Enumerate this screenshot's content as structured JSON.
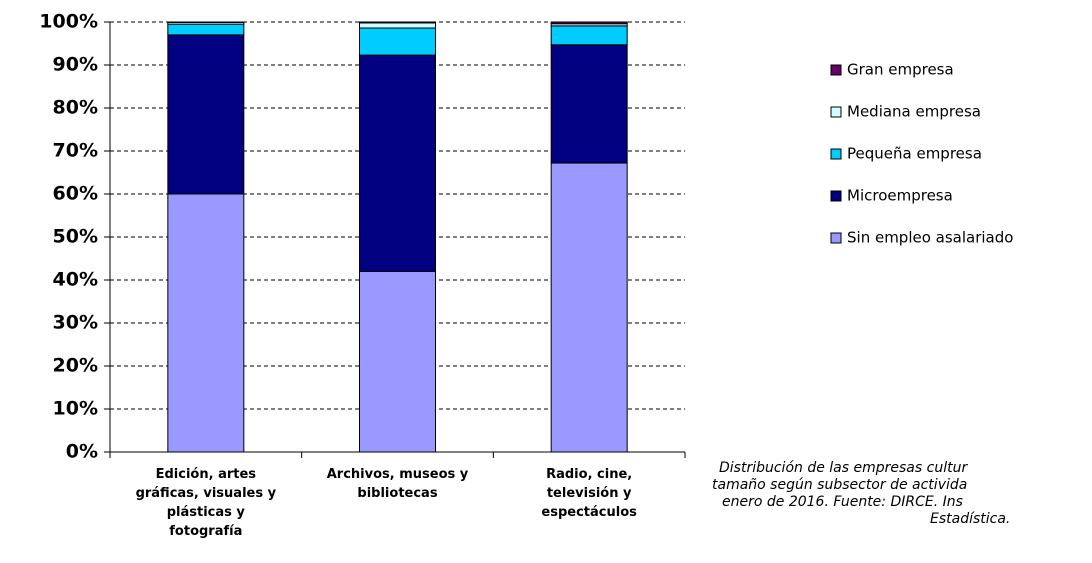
{
  "chart_data": {
    "type": "stacked_bar",
    "categories": [
      "Edición, artes gráficas, visuales y plásticas y fotografía",
      "Archivos, museos y bibliotecas",
      "Radio, cine, televisión y espectáculos"
    ],
    "series": [
      {
        "name": "Sin empleo asalariado",
        "color": "#9999ff",
        "values": [
          60,
          42,
          67.2
        ]
      },
      {
        "name": "Microempresa",
        "color": "#000080",
        "values": [
          37,
          50.3,
          27.5
        ]
      },
      {
        "name": "Pequeña empresa",
        "color": "#00ccff",
        "values": [
          2.5,
          6.3,
          4.4
        ]
      },
      {
        "name": "Mediana empresa",
        "color": "#ccffff",
        "values": [
          0.4,
          1.2,
          0.5
        ]
      },
      {
        "name": "Gran empresa",
        "color": "#660066",
        "values": [
          0.1,
          0.2,
          0.4
        ]
      }
    ],
    "ylim": [
      0,
      100
    ],
    "yticks": [
      {
        "value": 0,
        "label": "0%"
      },
      {
        "value": 10,
        "label": "10%"
      },
      {
        "value": 20,
        "label": "20%"
      },
      {
        "value": 30,
        "label": "30%"
      },
      {
        "value": 40,
        "label": "40%"
      },
      {
        "value": 50,
        "label": "50%"
      },
      {
        "value": 60,
        "label": "60%"
      },
      {
        "value": 70,
        "label": "70%"
      },
      {
        "value": 80,
        "label": "80%"
      },
      {
        "value": 90,
        "label": "90%"
      },
      {
        "value": 100,
        "label": "100%"
      }
    ],
    "grid": true,
    "caption": [
      "Distribución de las empresas cultur",
      "tamaño según subsector de activida",
      "enero de 2016. Fuente: DIRCE. Ins",
      "Estadística."
    ]
  }
}
